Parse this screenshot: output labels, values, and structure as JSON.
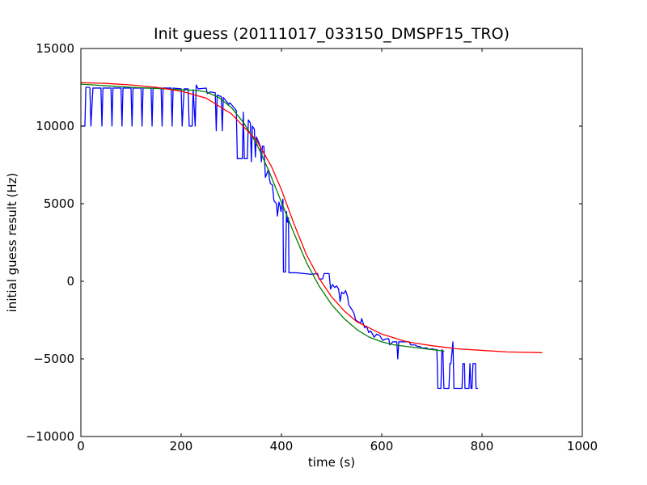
{
  "chart_data": {
    "type": "line",
    "title": "Init guess (20111017_033150_DMSPF15_TRO)",
    "xlabel": "time (s)",
    "ylabel": "initial guess result (Hz)",
    "xlim": [
      0,
      1000
    ],
    "ylim": [
      -10000,
      15000
    ],
    "xticks": [
      0,
      200,
      400,
      600,
      800,
      1000
    ],
    "yticks": [
      -10000,
      -5000,
      0,
      5000,
      10000,
      15000
    ],
    "xtick_labels": [
      "0",
      "200",
      "400",
      "600",
      "800",
      "1000"
    ],
    "ytick_labels": [
      "−10000",
      "−5000",
      "0",
      "5000",
      "10000",
      "15000"
    ],
    "grid": false,
    "legend": null,
    "series": [
      {
        "color": "#0000ff",
        "points": [
          [
            0,
            10000
          ],
          [
            8,
            10000
          ],
          [
            10,
            12500
          ],
          [
            16,
            12500
          ],
          [
            18,
            12450
          ],
          [
            20,
            10000
          ],
          [
            24,
            12450
          ],
          [
            40,
            12450
          ],
          [
            42,
            10000
          ],
          [
            44,
            12450
          ],
          [
            60,
            12450
          ],
          [
            62,
            10000
          ],
          [
            64,
            12450
          ],
          [
            80,
            12450
          ],
          [
            82,
            10000
          ],
          [
            84,
            12450
          ],
          [
            100,
            12450
          ],
          [
            102,
            10000
          ],
          [
            104,
            12450
          ],
          [
            120,
            12450
          ],
          [
            122,
            10000
          ],
          [
            124,
            12450
          ],
          [
            140,
            12450
          ],
          [
            142,
            10000
          ],
          [
            144,
            12450
          ],
          [
            160,
            12450
          ],
          [
            162,
            10000
          ],
          [
            164,
            12450
          ],
          [
            180,
            12450
          ],
          [
            182,
            10000
          ],
          [
            184,
            12450
          ],
          [
            200,
            12400
          ],
          [
            202,
            10000
          ],
          [
            206,
            12400
          ],
          [
            214,
            12400
          ],
          [
            216,
            10000
          ],
          [
            222,
            10000
          ],
          [
            224,
            12350
          ],
          [
            228,
            10000
          ],
          [
            230,
            12650
          ],
          [
            234,
            12400
          ],
          [
            250,
            12450
          ],
          [
            252,
            12100
          ],
          [
            258,
            12200
          ],
          [
            268,
            12150
          ],
          [
            270,
            9700
          ],
          [
            272,
            12000
          ],
          [
            280,
            11900
          ],
          [
            282,
            9700
          ],
          [
            284,
            11850
          ],
          [
            295,
            11400
          ],
          [
            297,
            11500
          ],
          [
            300,
            11400
          ],
          [
            310,
            11000
          ],
          [
            312,
            7900
          ],
          [
            322,
            7900
          ],
          [
            324,
            10900
          ],
          [
            326,
            7900
          ],
          [
            332,
            7900
          ],
          [
            334,
            10400
          ],
          [
            338,
            10200
          ],
          [
            340,
            7700
          ],
          [
            342,
            10000
          ],
          [
            346,
            9800
          ],
          [
            348,
            8000
          ],
          [
            350,
            9300
          ],
          [
            358,
            8700
          ],
          [
            360,
            7700
          ],
          [
            362,
            8700
          ],
          [
            365,
            8700
          ],
          [
            368,
            6700
          ],
          [
            374,
            7200
          ],
          [
            376,
            6600
          ],
          [
            378,
            6300
          ],
          [
            382,
            6200
          ],
          [
            385,
            5200
          ],
          [
            390,
            5000
          ],
          [
            392,
            4200
          ],
          [
            395,
            5100
          ],
          [
            397,
            4900
          ],
          [
            399,
            4500
          ],
          [
            403,
            5300
          ],
          [
            404,
            600
          ],
          [
            408,
            600
          ],
          [
            410,
            4500
          ],
          [
            412,
            3800
          ],
          [
            414,
            4100
          ],
          [
            415,
            550
          ],
          [
            430,
            550
          ],
          [
            445,
            500
          ],
          [
            460,
            450
          ],
          [
            472,
            500
          ],
          [
            475,
            150
          ],
          [
            482,
            150
          ],
          [
            485,
            500
          ],
          [
            495,
            500
          ],
          [
            498,
            -500
          ],
          [
            502,
            -200
          ],
          [
            506,
            -400
          ],
          [
            510,
            -300
          ],
          [
            514,
            -500
          ],
          [
            517,
            -1300
          ],
          [
            520,
            -700
          ],
          [
            524,
            -800
          ],
          [
            528,
            -600
          ],
          [
            532,
            -1000
          ],
          [
            534,
            -1500
          ],
          [
            542,
            -1900
          ],
          [
            545,
            -2100
          ],
          [
            548,
            -2500
          ],
          [
            558,
            -2700
          ],
          [
            560,
            -2400
          ],
          [
            566,
            -3000
          ],
          [
            570,
            -2900
          ],
          [
            574,
            -3300
          ],
          [
            578,
            -3200
          ],
          [
            585,
            -3600
          ],
          [
            590,
            -3400
          ],
          [
            596,
            -3500
          ],
          [
            602,
            -3800
          ],
          [
            610,
            -3700
          ],
          [
            614,
            -3700
          ],
          [
            616,
            -4100
          ],
          [
            622,
            -3900
          ],
          [
            630,
            -3900
          ],
          [
            632,
            -5000
          ],
          [
            634,
            -3900
          ],
          [
            650,
            -3900
          ],
          [
            655,
            -3900
          ],
          [
            658,
            -4100
          ],
          [
            666,
            -4100
          ],
          [
            672,
            -4200
          ],
          [
            676,
            -4200
          ],
          [
            680,
            -4300
          ],
          [
            690,
            -4300
          ],
          [
            695,
            -4400
          ],
          [
            700,
            -4350
          ],
          [
            706,
            -4400
          ],
          [
            710,
            -4400
          ],
          [
            712,
            -6900
          ],
          [
            718,
            -6900
          ],
          [
            720,
            -4400
          ],
          [
            722,
            -4500
          ],
          [
            724,
            -6900
          ],
          [
            734,
            -6900
          ],
          [
            736,
            -5300
          ],
          [
            738,
            -5300
          ],
          [
            740,
            -4600
          ],
          [
            742,
            -3900
          ],
          [
            744,
            -6900
          ],
          [
            760,
            -6900
          ],
          [
            762,
            -5300
          ],
          [
            765,
            -5300
          ],
          [
            766,
            -6900
          ],
          [
            774,
            -6900
          ],
          [
            776,
            -5300
          ],
          [
            778,
            -6900
          ],
          [
            780,
            -6900
          ],
          [
            782,
            -5300
          ],
          [
            787,
            -5300
          ],
          [
            788,
            -6900
          ],
          [
            792,
            -6900
          ]
        ]
      },
      {
        "color": "#008000",
        "points": [
          [
            0,
            12700
          ],
          [
            100,
            12500
          ],
          [
            200,
            12350
          ],
          [
            230,
            12300
          ],
          [
            250,
            12200
          ],
          [
            275,
            11850
          ],
          [
            300,
            11200
          ],
          [
            325,
            10200
          ],
          [
            350,
            8900
          ],
          [
            375,
            7100
          ],
          [
            400,
            5100
          ],
          [
            425,
            3100
          ],
          [
            450,
            1200
          ],
          [
            475,
            -300
          ],
          [
            500,
            -1500
          ],
          [
            525,
            -2400
          ],
          [
            550,
            -3100
          ],
          [
            575,
            -3600
          ],
          [
            600,
            -3900
          ],
          [
            625,
            -4100
          ],
          [
            650,
            -4200
          ],
          [
            675,
            -4300
          ],
          [
            700,
            -4400
          ],
          [
            725,
            -4500
          ]
        ]
      },
      {
        "color": "#ff0000",
        "points": [
          [
            0,
            12800
          ],
          [
            50,
            12750
          ],
          [
            100,
            12650
          ],
          [
            150,
            12500
          ],
          [
            200,
            12250
          ],
          [
            250,
            11800
          ],
          [
            300,
            10800
          ],
          [
            350,
            9100
          ],
          [
            380,
            7400
          ],
          [
            400,
            5900
          ],
          [
            425,
            3700
          ],
          [
            450,
            1700
          ],
          [
            475,
            200
          ],
          [
            500,
            -1000
          ],
          [
            525,
            -1900
          ],
          [
            550,
            -2600
          ],
          [
            600,
            -3400
          ],
          [
            650,
            -3900
          ],
          [
            700,
            -4150
          ],
          [
            750,
            -4350
          ],
          [
            800,
            -4450
          ],
          [
            850,
            -4550
          ],
          [
            920,
            -4600
          ]
        ]
      }
    ]
  }
}
